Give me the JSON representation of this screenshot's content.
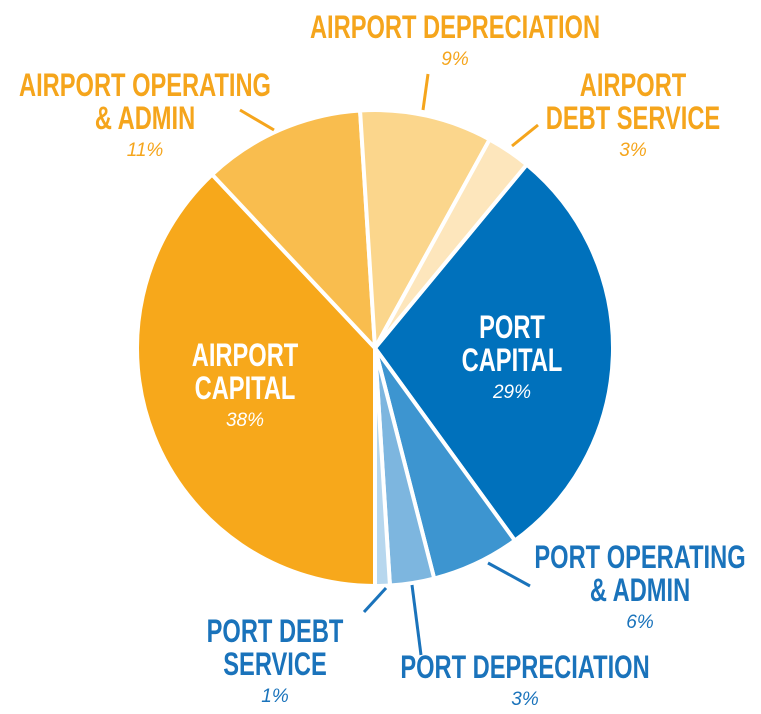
{
  "chart_data": {
    "type": "pie",
    "categories": [
      "PORT\nCAPITAL",
      "PORT OPERATING\n& ADMIN",
      "PORT DEPRECIATION",
      "PORT DEBT\nSERVICE",
      "AIRPORT\nCAPITAL",
      "AIRPORT OPERATING\n& ADMIN",
      "AIRPORT DEPRECIATION",
      "AIRPORT\nDEBT SERVICE"
    ],
    "values": [
      29,
      6,
      3,
      1,
      38,
      11,
      9,
      3
    ],
    "value_labels": [
      "29%",
      "6%",
      "3%",
      "1%",
      "38%",
      "11%",
      "9%",
      "3%"
    ],
    "colors": [
      "#0071bc",
      "#3d95d0",
      "#7db6df",
      "#b7d7ee",
      "#f7a81b",
      "#f9bd4e",
      "#fbd68c",
      "#fde6bc"
    ],
    "label_colors": [
      "#ffffff",
      "#1a73bb",
      "#1a73bb",
      "#1a73bb",
      "#ffffff",
      "#f5a51c",
      "#f5a51c",
      "#f5a51c"
    ]
  }
}
